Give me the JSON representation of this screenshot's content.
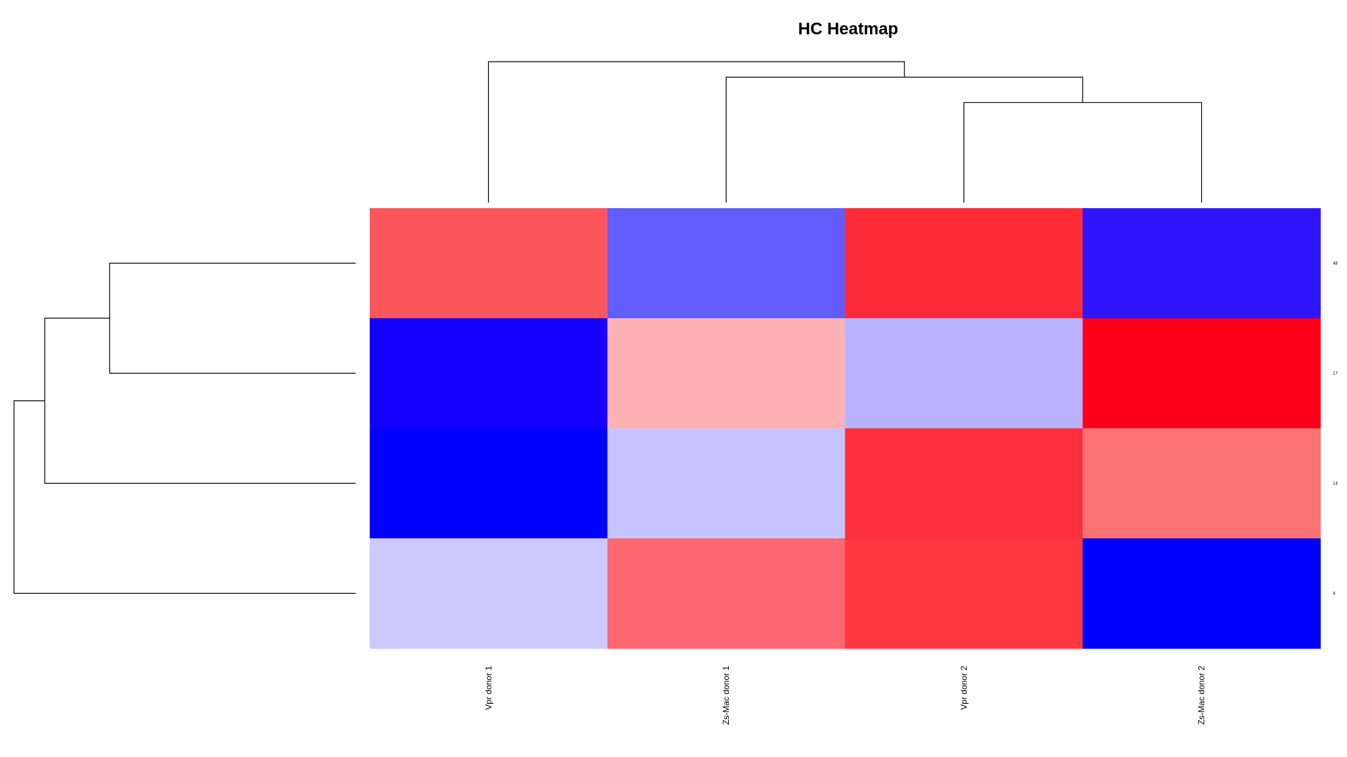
{
  "chart_data": {
    "type": "heatmap",
    "title": "HC Heatmap",
    "columns": [
      "Vpr donor 1",
      "Zs-Mac donor 1",
      "Vpr donor 2",
      "Zs-Mac donor 2"
    ],
    "rows": [
      "48",
      "17",
      "14",
      "8"
    ],
    "cells": [
      [
        "#fd555c",
        "#635cfe",
        "#fd2b37",
        "#2f15fe"
      ],
      [
        "#1400fe",
        "#fdb1b4",
        "#b8b3fe",
        "#fd0019"
      ],
      [
        "#0000fe",
        "#c5c3fe",
        "#fd313d",
        "#fd7375"
      ],
      [
        "#ccc9fe",
        "#fd6870",
        "#fd3640",
        "#0000fe"
      ]
    ],
    "values": [
      [
        0.66,
        -0.61,
        0.83,
        -0.82
      ],
      [
        -0.92,
        0.3,
        -0.28,
        1.0
      ],
      [
        -1.0,
        -0.23,
        0.8,
        0.54
      ],
      [
        -0.2,
        0.59,
        0.78,
        -1.0
      ]
    ],
    "color_scale": {
      "low": "#0000ff",
      "mid": "#ffffff",
      "high": "#ff0000"
    },
    "column_dendrogram": {
      "merges": [
        {
          "children": [
            "Vpr donor 2",
            "Zs-Mac donor 2"
          ],
          "height": 0.71
        },
        {
          "children": [
            "Zs-Mac donor 1",
            "cluster-1"
          ],
          "height": 0.89
        },
        {
          "children": [
            "Vpr donor 1",
            "cluster-2"
          ],
          "height": 1.0
        }
      ]
    },
    "row_dendrogram": {
      "merges": [
        {
          "children": [
            "48",
            "17"
          ],
          "height": 0.72
        },
        {
          "children": [
            "cluster-1",
            "14"
          ],
          "height": 0.91
        },
        {
          "children": [
            "8",
            "cluster-2"
          ],
          "height": 1.0
        }
      ]
    }
  }
}
